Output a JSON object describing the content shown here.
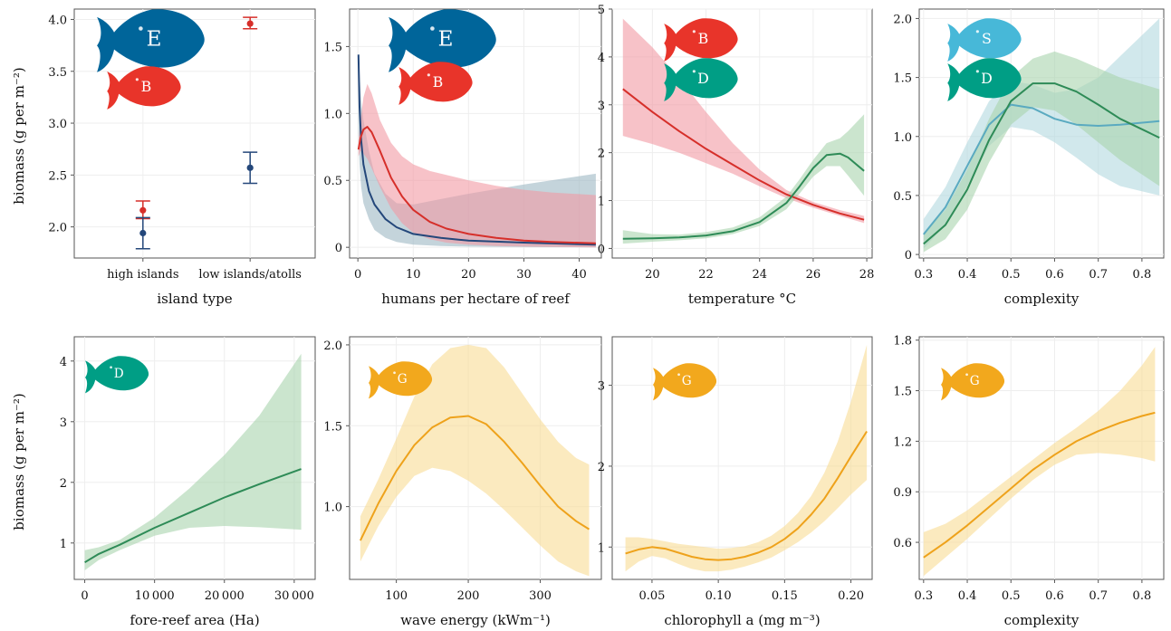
{
  "figure": {
    "ylabel": "biomass (g per m⁻²)"
  },
  "colors": {
    "E": "#00659a",
    "B": "#e8342a",
    "D": "#009e85",
    "S": "#47b8d8",
    "G": "#f2a81d",
    "band_red": "#f29aa4",
    "band_blue": "#9db7c3",
    "band_green": "#a8d4ae",
    "band_teal": "#b3d9e0",
    "band_yellow": "#f9dc94",
    "line_red": "#d62f2a",
    "line_blue": "#24477a",
    "line_green": "#2e8b57",
    "line_teal": "#5aaac0",
    "line_yellow": "#eea21b"
  },
  "chart_data": [
    {
      "id": "p1",
      "type": "scatter",
      "xlabel": "island type",
      "categories": [
        "high islands",
        "low islands/atolls"
      ],
      "ylim": [
        1.7,
        4.1
      ],
      "yticks": [
        2.0,
        2.5,
        3.0,
        3.5,
        4.0
      ],
      "ytick_labels": [
        "2.0",
        "2.5",
        "3.0",
        "3.5",
        "4.0"
      ],
      "fish": [
        {
          "letter": "E",
          "group": "E",
          "size": "large"
        },
        {
          "letter": "B",
          "group": "B",
          "size": "medium"
        }
      ],
      "series": [
        {
          "group": "B",
          "points": [
            {
              "cat": 0,
              "y": 2.16,
              "lo": 2.08,
              "hi": 2.25
            },
            {
              "cat": 1,
              "y": 3.96,
              "lo": 3.91,
              "hi": 4.02
            }
          ]
        },
        {
          "group": "E",
          "points": [
            {
              "cat": 0,
              "y": 1.94,
              "lo": 1.79,
              "hi": 2.09
            },
            {
              "cat": 1,
              "y": 2.57,
              "lo": 2.42,
              "hi": 2.72
            }
          ]
        }
      ]
    },
    {
      "id": "p2",
      "type": "line",
      "xlabel": "humans per hectare of reef",
      "xlim": [
        -1.5,
        44
      ],
      "ylim": [
        -0.08,
        1.78
      ],
      "xticks": [
        0,
        10,
        20,
        30,
        40
      ],
      "xtick_labels": [
        "0",
        "10",
        "20",
        "30",
        "40"
      ],
      "yticks": [
        0,
        0.5,
        1.0,
        1.5
      ],
      "ytick_labels": [
        "0",
        "0.5",
        "1.0",
        "1.5"
      ],
      "fish": [
        {
          "letter": "E",
          "group": "E",
          "size": "large"
        },
        {
          "letter": "B",
          "group": "B",
          "size": "medium"
        }
      ],
      "series": [
        {
          "group": "E",
          "line": "line_blue",
          "band": "band_blue",
          "x": [
            0.1,
            0.3,
            0.6,
            1,
            2,
            3,
            5,
            7,
            10,
            15,
            20,
            30,
            43
          ],
          "y": [
            1.44,
            1.05,
            0.8,
            0.62,
            0.42,
            0.32,
            0.21,
            0.15,
            0.1,
            0.07,
            0.05,
            0.035,
            0.02
          ],
          "lo": [
            0.85,
            0.62,
            0.45,
            0.33,
            0.21,
            0.13,
            0.07,
            0.04,
            0.02,
            0.01,
            0.005,
            0.002,
            0.0
          ],
          "hi": [
            1.44,
            1.3,
            1.1,
            0.95,
            0.72,
            0.55,
            0.4,
            0.33,
            0.32,
            0.36,
            0.4,
            0.47,
            0.55
          ]
        },
        {
          "group": "B",
          "line": "line_red",
          "band": "band_red",
          "x": [
            0.1,
            0.5,
            1,
            1.7,
            2.5,
            4,
            6,
            8,
            10,
            13,
            16,
            20,
            25,
            30,
            35,
            43
          ],
          "y": [
            0.73,
            0.82,
            0.88,
            0.9,
            0.86,
            0.72,
            0.52,
            0.38,
            0.28,
            0.19,
            0.14,
            0.1,
            0.07,
            0.05,
            0.04,
            0.03
          ],
          "lo": [
            0.68,
            0.72,
            0.7,
            0.66,
            0.59,
            0.45,
            0.29,
            0.18,
            0.11,
            0.06,
            0.035,
            0.02,
            0.01,
            0.005,
            0.003,
            0.0
          ],
          "hi": [
            0.8,
            0.95,
            1.12,
            1.22,
            1.15,
            0.95,
            0.78,
            0.68,
            0.62,
            0.57,
            0.54,
            0.5,
            0.46,
            0.43,
            0.41,
            0.39
          ]
        }
      ]
    },
    {
      "id": "p3",
      "type": "line",
      "xlabel": "temperature °C",
      "xlim": [
        18.5,
        28.2
      ],
      "ylim": [
        -0.2,
        5.0
      ],
      "xticks": [
        20,
        22,
        24,
        26,
        28
      ],
      "xtick_labels": [
        "20",
        "22",
        "24",
        "26",
        "28"
      ],
      "yticks": [
        0,
        1,
        2,
        3,
        4,
        5
      ],
      "ytick_labels": [
        "0",
        "1",
        "2",
        "3",
        "4",
        "5"
      ],
      "fish": [
        {
          "letter": "B",
          "group": "B",
          "size": "medium"
        },
        {
          "letter": "D",
          "group": "D",
          "size": "medium"
        }
      ],
      "series": [
        {
          "group": "B",
          "line": "line_red",
          "band": "band_red",
          "x": [
            18.9,
            20,
            21,
            22,
            23,
            24,
            25,
            26,
            27,
            27.9
          ],
          "y": [
            3.33,
            2.85,
            2.45,
            2.08,
            1.75,
            1.42,
            1.13,
            0.91,
            0.73,
            0.6
          ],
          "lo": [
            2.35,
            2.18,
            2.0,
            1.78,
            1.56,
            1.3,
            1.05,
            0.85,
            0.68,
            0.53
          ],
          "hi": [
            4.8,
            4.2,
            3.55,
            2.85,
            2.2,
            1.65,
            1.22,
            0.97,
            0.8,
            0.68
          ]
        },
        {
          "group": "D",
          "line": "line_green",
          "band": "band_green",
          "x": [
            18.9,
            20,
            21,
            22,
            23,
            24,
            25,
            25.5,
            26,
            26.5,
            27,
            27.3,
            27.9
          ],
          "y": [
            0.2,
            0.21,
            0.23,
            0.27,
            0.36,
            0.55,
            0.95,
            1.3,
            1.68,
            1.95,
            1.98,
            1.9,
            1.62
          ],
          "lo": [
            0.1,
            0.14,
            0.17,
            0.21,
            0.3,
            0.47,
            0.82,
            1.15,
            1.5,
            1.72,
            1.72,
            1.52,
            1.1
          ],
          "hi": [
            0.38,
            0.3,
            0.29,
            0.34,
            0.44,
            0.65,
            1.08,
            1.45,
            1.85,
            2.2,
            2.3,
            2.45,
            2.8
          ]
        }
      ]
    },
    {
      "id": "p4",
      "type": "line",
      "xlabel": "complexity",
      "xlim": [
        0.29,
        0.85
      ],
      "ylim": [
        -0.03,
        2.08
      ],
      "xticks": [
        0.3,
        0.4,
        0.5,
        0.6,
        0.7,
        0.8
      ],
      "xtick_labels": [
        "0.3",
        "0.4",
        "0.5",
        "0.6",
        "0.7",
        "0.8"
      ],
      "yticks": [
        0,
        0.5,
        1.0,
        1.5,
        2.0
      ],
      "ytick_labels": [
        "0",
        "0.5",
        "1.0",
        "1.5",
        "2.0"
      ],
      "fish": [
        {
          "letter": "S",
          "group": "S",
          "size": "medium"
        },
        {
          "letter": "D",
          "group": "D",
          "size": "medium"
        }
      ],
      "series": [
        {
          "group": "S",
          "line": "line_teal",
          "band": "band_teal",
          "x": [
            0.3,
            0.35,
            0.4,
            0.45,
            0.5,
            0.55,
            0.6,
            0.65,
            0.7,
            0.75,
            0.84
          ],
          "y": [
            0.17,
            0.4,
            0.75,
            1.1,
            1.27,
            1.24,
            1.15,
            1.1,
            1.09,
            1.1,
            1.13
          ],
          "lo": [
            0.05,
            0.25,
            0.58,
            0.92,
            1.08,
            1.05,
            0.95,
            0.82,
            0.68,
            0.58,
            0.5
          ],
          "hi": [
            0.3,
            0.57,
            0.95,
            1.3,
            1.47,
            1.44,
            1.37,
            1.4,
            1.5,
            1.68,
            2.0
          ]
        },
        {
          "group": "D",
          "line": "line_green",
          "band": "band_green",
          "x": [
            0.3,
            0.35,
            0.4,
            0.45,
            0.5,
            0.55,
            0.6,
            0.65,
            0.7,
            0.75,
            0.84
          ],
          "y": [
            0.09,
            0.25,
            0.55,
            0.97,
            1.3,
            1.45,
            1.45,
            1.38,
            1.27,
            1.15,
            0.99
          ],
          "lo": [
            0.02,
            0.13,
            0.38,
            0.78,
            1.1,
            1.25,
            1.22,
            1.1,
            0.95,
            0.8,
            0.58
          ],
          "hi": [
            0.18,
            0.38,
            0.72,
            1.15,
            1.5,
            1.66,
            1.72,
            1.66,
            1.58,
            1.5,
            1.4
          ]
        }
      ]
    },
    {
      "id": "p5",
      "type": "line",
      "xlabel": "fore-reef area (Ha)",
      "xlim": [
        -1500,
        33000
      ],
      "ylim": [
        0.4,
        4.4
      ],
      "xticks": [
        0,
        10000,
        20000,
        30000
      ],
      "xtick_labels": [
        "0",
        "10 000",
        "20 000",
        "30 000"
      ],
      "yticks": [
        1,
        2,
        3,
        4
      ],
      "ytick_labels": [
        "1",
        "2",
        "3",
        "4"
      ],
      "fish": [
        {
          "letter": "D",
          "group": "D",
          "size": "medium"
        }
      ],
      "series": [
        {
          "group": "D",
          "line": "line_green",
          "band": "band_green",
          "x": [
            0,
            2000,
            5000,
            10000,
            15000,
            20000,
            25000,
            31000
          ],
          "y": [
            0.68,
            0.82,
            0.97,
            1.25,
            1.5,
            1.75,
            1.97,
            2.22
          ],
          "lo": [
            0.55,
            0.72,
            0.88,
            1.12,
            1.25,
            1.28,
            1.26,
            1.22
          ],
          "hi": [
            0.88,
            0.93,
            1.05,
            1.42,
            1.9,
            2.45,
            3.1,
            4.12
          ]
        }
      ]
    },
    {
      "id": "p6",
      "type": "line",
      "xlabel": "wave energy (kWm⁻¹)",
      "xlim": [
        35,
        385
      ],
      "ylim": [
        0.55,
        2.05
      ],
      "xticks": [
        100,
        200,
        300
      ],
      "xtick_labels": [
        "100",
        "200",
        "300"
      ],
      "yticks": [
        1.0,
        1.5,
        2.0
      ],
      "ytick_labels": [
        "1.0",
        "1.5",
        "2.0"
      ],
      "fish": [
        {
          "letter": "G",
          "group": "G",
          "size": "medium"
        }
      ],
      "series": [
        {
          "group": "G",
          "line": "line_yellow",
          "band": "band_yellow",
          "x": [
            50,
            75,
            100,
            125,
            150,
            175,
            200,
            225,
            250,
            275,
            300,
            325,
            350,
            368
          ],
          "y": [
            0.79,
            1.02,
            1.22,
            1.38,
            1.49,
            1.55,
            1.56,
            1.51,
            1.4,
            1.27,
            1.13,
            1.0,
            0.91,
            0.86
          ],
          "lo": [
            0.66,
            0.88,
            1.06,
            1.19,
            1.24,
            1.22,
            1.16,
            1.08,
            0.98,
            0.87,
            0.76,
            0.66,
            0.6,
            0.57
          ],
          "hi": [
            0.94,
            1.17,
            1.42,
            1.68,
            1.88,
            1.98,
            2.0,
            1.98,
            1.86,
            1.7,
            1.54,
            1.4,
            1.3,
            1.26
          ]
        }
      ]
    },
    {
      "id": "p7",
      "type": "line",
      "xlabel": "chlorophyll a (mg m⁻³)",
      "xlim": [
        0.02,
        0.216
      ],
      "ylim": [
        0.6,
        3.6
      ],
      "xticks": [
        0.05,
        0.1,
        0.15,
        0.2
      ],
      "xtick_labels": [
        "0.05",
        "0.10",
        "0.15",
        "0.20"
      ],
      "yticks": [
        1,
        2,
        3
      ],
      "ytick_labels": [
        "1",
        "2",
        "3"
      ],
      "fish": [
        {
          "letter": "G",
          "group": "G",
          "size": "medium"
        }
      ],
      "series": [
        {
          "group": "G",
          "line": "line_yellow",
          "band": "band_yellow",
          "x": [
            0.03,
            0.04,
            0.05,
            0.06,
            0.07,
            0.08,
            0.09,
            0.1,
            0.11,
            0.12,
            0.13,
            0.14,
            0.15,
            0.16,
            0.17,
            0.18,
            0.19,
            0.2,
            0.212
          ],
          "y": [
            0.92,
            0.97,
            1.0,
            0.98,
            0.93,
            0.88,
            0.85,
            0.84,
            0.85,
            0.88,
            0.93,
            1.0,
            1.1,
            1.23,
            1.4,
            1.6,
            1.85,
            2.12,
            2.43
          ],
          "lo": [
            0.7,
            0.82,
            0.89,
            0.86,
            0.79,
            0.73,
            0.7,
            0.7,
            0.72,
            0.76,
            0.81,
            0.87,
            0.96,
            1.06,
            1.18,
            1.32,
            1.48,
            1.65,
            1.83
          ],
          "hi": [
            1.12,
            1.12,
            1.1,
            1.07,
            1.04,
            1.02,
            1.0,
            0.98,
            0.99,
            1.01,
            1.06,
            1.14,
            1.26,
            1.42,
            1.63,
            1.92,
            2.3,
            2.8,
            3.5
          ]
        }
      ]
    },
    {
      "id": "p8",
      "type": "line",
      "xlabel": "complexity",
      "xlim": [
        0.29,
        0.85
      ],
      "ylim": [
        0.38,
        1.82
      ],
      "xticks": [
        0.3,
        0.4,
        0.5,
        0.6,
        0.7,
        0.8
      ],
      "xtick_labels": [
        "0.3",
        "0.4",
        "0.5",
        "0.6",
        "0.7",
        "0.8"
      ],
      "yticks": [
        0.6,
        0.9,
        1.2,
        1.5,
        1.8
      ],
      "ytick_labels": [
        "0.6",
        "0.9",
        "1.2",
        "1.5",
        "1.8"
      ],
      "fish": [
        {
          "letter": "G",
          "group": "G",
          "size": "medium"
        }
      ],
      "series": [
        {
          "group": "G",
          "line": "line_yellow",
          "band": "band_yellow",
          "x": [
            0.3,
            0.35,
            0.4,
            0.45,
            0.5,
            0.55,
            0.6,
            0.65,
            0.7,
            0.75,
            0.8,
            0.83
          ],
          "y": [
            0.51,
            0.6,
            0.7,
            0.81,
            0.92,
            1.03,
            1.12,
            1.2,
            1.26,
            1.31,
            1.35,
            1.37
          ],
          "lo": [
            0.4,
            0.51,
            0.62,
            0.74,
            0.86,
            0.97,
            1.06,
            1.12,
            1.13,
            1.12,
            1.1,
            1.08
          ],
          "hi": [
            0.66,
            0.71,
            0.79,
            0.89,
            0.99,
            1.09,
            1.19,
            1.28,
            1.38,
            1.5,
            1.65,
            1.76
          ]
        }
      ]
    }
  ]
}
